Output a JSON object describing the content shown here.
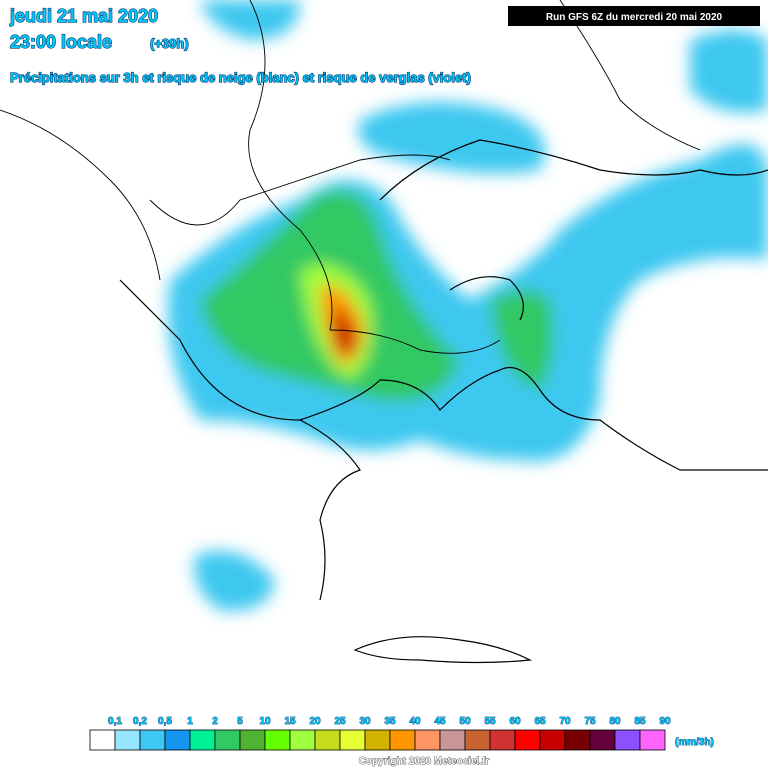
{
  "header": {
    "date": "jeudi 21 mai 2020",
    "time": "23:00 locale",
    "lead": "(+39h)",
    "subtitle": "Précipitations sur 3h et risque de neige (blanc) et risque de verglas (violet)"
  },
  "run": "Run GFS 6Z du mercredi 20 mai 2020",
  "legend": {
    "labels": [
      "0,1",
      "0,2",
      "0,5",
      "1",
      "2",
      "5",
      "10",
      "15",
      "20",
      "25",
      "30",
      "35",
      "40",
      "45",
      "50",
      "55",
      "60",
      "65",
      "70",
      "75",
      "80",
      "85",
      "90"
    ],
    "colors": [
      "#ffffff",
      "#96e6ff",
      "#3cc8f0",
      "#1496f0",
      "#00f096",
      "#32c864",
      "#50b432",
      "#64ff00",
      "#a0ff3c",
      "#c8dc1e",
      "#e6ff32",
      "#d2b400",
      "#ff9600",
      "#ff9664",
      "#c89696",
      "#c86432",
      "#d23232",
      "#ff0000",
      "#c80000",
      "#780000",
      "#64003c",
      "#8c50ff",
      "#ff64ff"
    ],
    "unit": "(mm/3h)"
  },
  "copyright": "Copyright 2020 Meteociel.fr"
}
